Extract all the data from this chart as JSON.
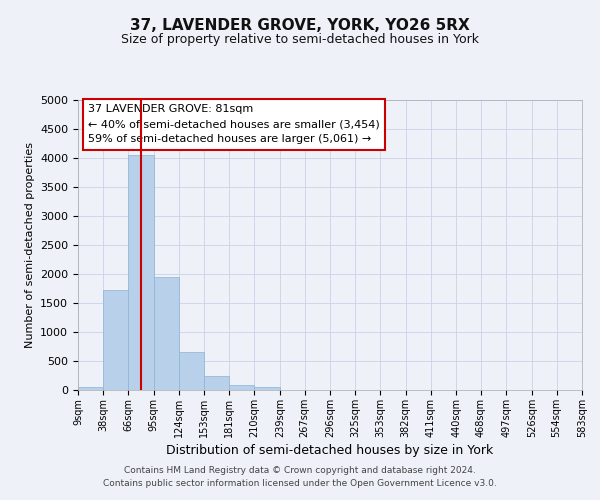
{
  "title": "37, LAVENDER GROVE, YORK, YO26 5RX",
  "subtitle": "Size of property relative to semi-detached houses in York",
  "xlabel": "Distribution of semi-detached houses by size in York",
  "ylabel": "Number of semi-detached properties",
  "bin_edges": [
    9,
    38,
    66,
    95,
    124,
    153,
    181,
    210,
    239,
    267,
    296,
    325,
    353,
    382,
    411,
    440,
    468,
    497,
    526,
    554,
    583
  ],
  "bar_heights": [
    50,
    1730,
    4050,
    1950,
    660,
    240,
    90,
    50,
    0,
    0,
    0,
    0,
    0,
    0,
    0,
    0,
    0,
    0,
    0,
    0
  ],
  "bar_color": "#b8d0ea",
  "bar_edgecolor": "#8ab4d8",
  "property_line_x": 81,
  "property_line_color": "#cc0000",
  "ylim": [
    0,
    5000
  ],
  "ann_line1": "37 LAVENDER GROVE: 81sqm",
  "ann_line2": "← 40% of semi-detached houses are smaller (3,454)",
  "ann_line3": "59% of semi-detached houses are larger (5,061) →",
  "footer_text": "Contains HM Land Registry data © Crown copyright and database right 2024.\nContains public sector information licensed under the Open Government Licence v3.0.",
  "background_color": "#eef2f8",
  "grid_color": "#c8d4e8",
  "tick_labels": [
    "9sqm",
    "38sqm",
    "66sqm",
    "95sqm",
    "124sqm",
    "153sqm",
    "181sqm",
    "210sqm",
    "239sqm",
    "267sqm",
    "296sqm",
    "325sqm",
    "353sqm",
    "382sqm",
    "411sqm",
    "440sqm",
    "468sqm",
    "497sqm",
    "526sqm",
    "554sqm",
    "583sqm"
  ]
}
